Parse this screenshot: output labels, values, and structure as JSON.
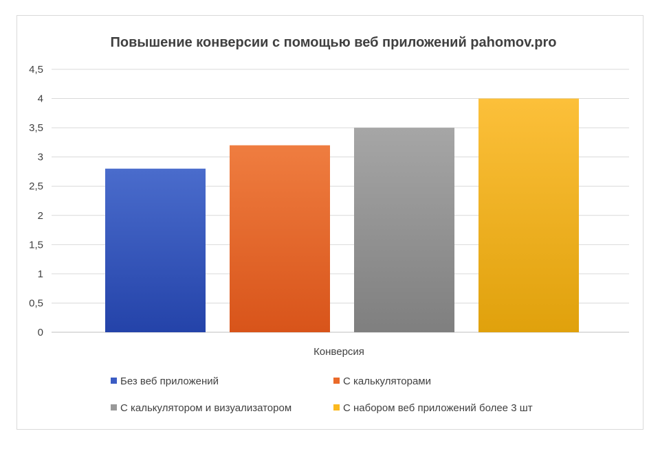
{
  "chart_data": {
    "type": "bar",
    "title": "Повышение конверсии с помощью веб приложений pahomov.pro",
    "categories": [
      "Конверсия"
    ],
    "series": [
      {
        "name": "Без веб приложений",
        "values": [
          2.8
        ],
        "color": "#3b5cc4"
      },
      {
        "name": "С калькуляторами",
        "values": [
          3.2
        ],
        "color": "#ea6a2a"
      },
      {
        "name": "С калькулятором и визуализатором",
        "values": [
          3.5
        ],
        "color": "#999999"
      },
      {
        "name": "С набором веб приложений более 3 шт",
        "values": [
          4.0
        ],
        "color": "#fbb91f"
      }
    ],
    "y_ticks": [
      "0",
      "0,5",
      "1",
      "1,5",
      "2",
      "2,5",
      "3",
      "3,5",
      "4",
      "4,5"
    ],
    "ylim": [
      0,
      4.5
    ],
    "grid": true,
    "legend": "bottom"
  }
}
